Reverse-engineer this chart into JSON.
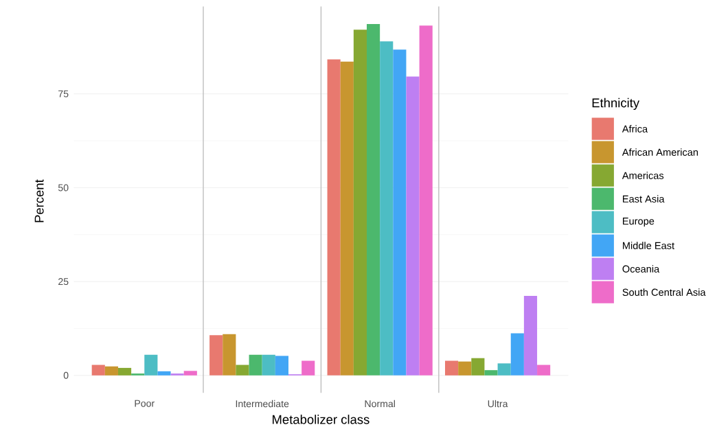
{
  "chart_data": {
    "type": "bar",
    "xlabel": "Metabolizer class",
    "ylabel": "Percent",
    "legend_title": "Ethnicity",
    "categories": [
      "Poor",
      "Intermediate",
      "Normal",
      "Ultra"
    ],
    "series": [
      {
        "name": "Africa",
        "color": "#E8796F",
        "values": [
          2.8,
          10.7,
          84.2,
          3.9
        ]
      },
      {
        "name": "African American",
        "color": "#C8962F",
        "values": [
          2.4,
          11.0,
          83.6,
          3.7
        ]
      },
      {
        "name": "Americas",
        "color": "#86A832",
        "values": [
          2.0,
          2.8,
          92.1,
          4.6
        ]
      },
      {
        "name": "East Asia",
        "color": "#4CB86D",
        "values": [
          0.5,
          5.5,
          93.6,
          1.4
        ]
      },
      {
        "name": "Europe",
        "color": "#4DBDC4",
        "values": [
          5.5,
          5.5,
          89.0,
          3.2
        ]
      },
      {
        "name": "Middle East",
        "color": "#42A6F5",
        "values": [
          1.1,
          5.2,
          86.8,
          11.2
        ]
      },
      {
        "name": "Oceania",
        "color": "#BE7FF2",
        "values": [
          0.5,
          0.3,
          79.6,
          21.2
        ]
      },
      {
        "name": "South Central Asia",
        "color": "#EE6CC9",
        "values": [
          1.2,
          3.9,
          93.2,
          2.8
        ]
      }
    ],
    "ylim": [
      -4.7,
      98.3
    ],
    "yticks": [
      0,
      25,
      50,
      75
    ],
    "grid": "y",
    "legend": "right"
  }
}
